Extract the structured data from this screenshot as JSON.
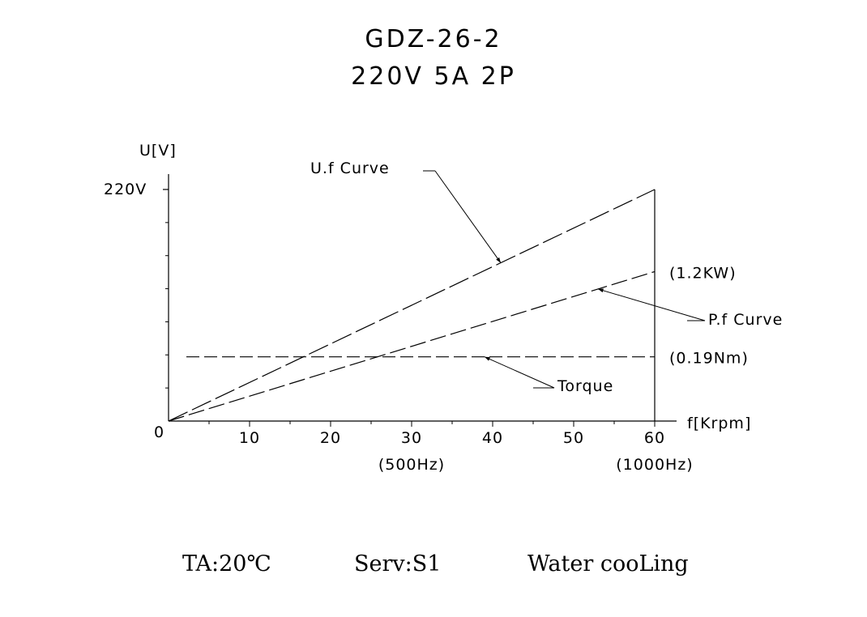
{
  "chart_data": {
    "type": "line",
    "title": "GDZ-26-2",
    "subtitle": "220V 5A 2P",
    "ylabel": "U[V]",
    "y_tick_label": "220V",
    "xlabel": "f[Krpm]",
    "origin_label": "0",
    "xlim": [
      0,
      60
    ],
    "ylim": [
      0,
      220
    ],
    "x_ticks": [
      {
        "value": 10,
        "label": "10"
      },
      {
        "value": 20,
        "label": "20"
      },
      {
        "value": 30,
        "label": "30"
      },
      {
        "value": 40,
        "label": "40"
      },
      {
        "value": 50,
        "label": "50"
      },
      {
        "value": 60,
        "label": "60"
      }
    ],
    "x_sublabels": [
      {
        "value": 30,
        "label": "(500Hz)"
      },
      {
        "value": 60,
        "label": "(1000Hz)"
      }
    ],
    "series": [
      {
        "name": "U.f Curve",
        "x": [
          0,
          60
        ],
        "y": [
          0,
          220
        ],
        "anchor_x": 41
      },
      {
        "name": "P.f Curve",
        "x": [
          0,
          60
        ],
        "y": [
          0,
          142
        ],
        "end_label": "(1.2KW)",
        "anchor_x": 53
      },
      {
        "name": "Torque",
        "x": [
          2.2,
          60
        ],
        "y": [
          61,
          61
        ],
        "end_label": "(0.19Nm)",
        "anchor_x": 39
      }
    ]
  },
  "footer": {
    "ambient": "TA:20℃",
    "service": "Serv:S1",
    "cooling": "Water cooLing"
  }
}
